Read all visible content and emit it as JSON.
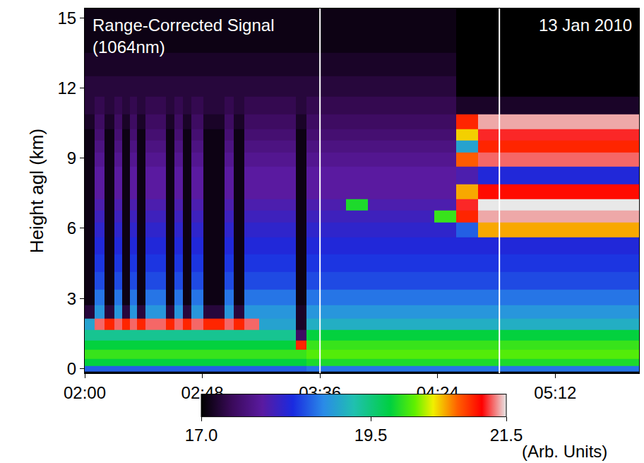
{
  "chart_data": {
    "type": "heatmap",
    "y_label": "Height agl (km)",
    "annotations": [
      {
        "lines": [
          "Range-Corrected Signal",
          "(1064nm)"
        ]
      },
      {
        "lines": [
          "13 Jan 2010"
        ]
      }
    ],
    "xlim": [
      2.0,
      5.77
    ],
    "xticks": [
      {
        "value": 2.0,
        "label": "02:00"
      },
      {
        "value": 2.8,
        "label": "02:48"
      },
      {
        "value": 3.6,
        "label": "03:36"
      },
      {
        "value": 4.4,
        "label": "04:24"
      },
      {
        "value": 5.2,
        "label": "05:12"
      }
    ],
    "ylim": [
      -0.2,
      15.4
    ],
    "yticks": [
      0,
      3,
      6,
      9,
      12,
      15
    ],
    "vertical_lines": [
      3.6,
      4.82
    ],
    "zlim": [
      17,
      21.5
    ],
    "zticks": [
      {
        "value": 17,
        "label": "17.0"
      },
      {
        "value": 19.5,
        "label": "19.5"
      },
      {
        "value": 21.5,
        "label": "21.5"
      }
    ],
    "colorbar_title": "(Arb. Units)",
    "x": [
      2.03,
      2.1,
      2.17,
      2.23,
      2.28,
      2.33,
      2.38,
      2.45,
      2.52,
      2.58,
      2.64,
      2.69,
      2.76,
      2.85,
      2.92,
      2.98,
      3.05,
      3.12,
      3.25,
      3.4,
      3.47,
      3.55,
      3.7,
      3.85,
      4.0,
      4.15,
      4.3,
      4.45,
      4.6,
      4.75,
      4.9,
      5.05,
      5.2,
      5.35,
      5.5,
      5.65,
      5.75
    ],
    "y": [
      0,
      0.25,
      0.6,
      1.0,
      1.4,
      1.9,
      2.4,
      3.0,
      3.75,
      4.5,
      5.25,
      6.0,
      6.5,
      7.0,
      7.5,
      8.25,
      9.0,
      9.5,
      10.0,
      10.5,
      11.25,
      12.0,
      13.0,
      14.0,
      15.0
    ],
    "z": [
      [
        18.6,
        18.6,
        18.6,
        18.6,
        18.6,
        18.6,
        18.6,
        18.6,
        18.6,
        18.6,
        18.6,
        18.6,
        18.6,
        18.6,
        18.6,
        18.6,
        18.6,
        18.6,
        18.6,
        18.6,
        18.6,
        18.7,
        18.7,
        18.7,
        18.7,
        18.7,
        18.7,
        18.7,
        18.7,
        18.7,
        18.7,
        18.7,
        18.7,
        18.7,
        18.7,
        18.7,
        18.7
      ],
      [
        19.8,
        19.8,
        19.8,
        19.8,
        19.8,
        19.8,
        19.8,
        19.8,
        19.8,
        19.8,
        19.8,
        19.8,
        19.8,
        19.8,
        19.8,
        19.8,
        19.8,
        19.8,
        19.8,
        19.8,
        19.8,
        19.9,
        19.9,
        19.9,
        19.9,
        19.9,
        19.9,
        19.9,
        19.9,
        19.9,
        19.9,
        19.9,
        19.9,
        19.9,
        19.9,
        19.9,
        19.9
      ],
      [
        20.0,
        20.0,
        20.0,
        20.0,
        20.0,
        20.0,
        20.0,
        20.0,
        20.0,
        20.0,
        20.0,
        20.0,
        20.0,
        20.0,
        20.0,
        20.0,
        20.0,
        20.0,
        20.0,
        20.0,
        20.0,
        20.1,
        20.1,
        20.1,
        20.1,
        20.1,
        20.1,
        20.1,
        20.1,
        20.1,
        20.1,
        20.1,
        20.1,
        20.1,
        20.1,
        20.1,
        20.1
      ],
      [
        19.8,
        19.8,
        19.8,
        19.8,
        19.8,
        19.8,
        19.8,
        19.8,
        19.8,
        19.8,
        19.8,
        19.8,
        19.8,
        19.8,
        19.8,
        19.8,
        19.8,
        19.8,
        19.8,
        19.8,
        21.0,
        20.0,
        20.0,
        20.0,
        20.0,
        20.0,
        20.0,
        20.0,
        20.0,
        20.0,
        20.0,
        20.0,
        20.0,
        20.0,
        20.0,
        20.0,
        20.0
      ],
      [
        19.4,
        19.4,
        19.4,
        19.4,
        19.4,
        19.4,
        19.4,
        19.4,
        19.4,
        19.4,
        19.4,
        19.4,
        19.4,
        19.4,
        19.4,
        19.4,
        19.4,
        19.4,
        19.4,
        19.4,
        17.5,
        19.8,
        19.8,
        19.8,
        19.8,
        19.8,
        19.8,
        19.8,
        19.8,
        19.8,
        19.8,
        19.8,
        19.8,
        19.8,
        19.8,
        19.8,
        19.8
      ],
      [
        19.0,
        21.3,
        21.0,
        21.3,
        21.0,
        21.3,
        21.0,
        21.3,
        21.3,
        21.0,
        21.3,
        21.0,
        21.3,
        21.0,
        21.0,
        21.3,
        21.0,
        21.3,
        19.0,
        19.0,
        17.2,
        19.1,
        19.1,
        19.1,
        19.1,
        19.1,
        19.1,
        19.1,
        19.1,
        19.1,
        19.1,
        19.1,
        19.1,
        19.1,
        19.1,
        19.1,
        19.1
      ],
      [
        17.3,
        18.9,
        17.3,
        18.9,
        17.3,
        18.9,
        17.3,
        18.9,
        18.9,
        17.3,
        18.9,
        17.3,
        18.9,
        17.3,
        17.3,
        18.9,
        17.3,
        18.9,
        18.9,
        18.9,
        17.2,
        18.9,
        18.9,
        18.9,
        18.9,
        18.9,
        18.9,
        18.9,
        18.9,
        18.9,
        18.9,
        18.9,
        18.9,
        18.9,
        18.9,
        18.9,
        18.9
      ],
      [
        17.1,
        18.7,
        17.1,
        18.7,
        17.1,
        18.7,
        17.1,
        18.7,
        18.7,
        17.1,
        18.7,
        17.1,
        18.7,
        17.1,
        17.1,
        18.7,
        17.1,
        18.7,
        18.7,
        18.7,
        17.1,
        18.7,
        18.7,
        18.7,
        18.7,
        18.7,
        18.7,
        18.7,
        18.7,
        18.7,
        18.7,
        18.7,
        18.7,
        18.7,
        18.7,
        18.7,
        18.7
      ],
      [
        17.1,
        18.5,
        17.1,
        18.5,
        17.1,
        18.5,
        17.1,
        18.5,
        18.5,
        17.1,
        18.5,
        17.1,
        18.5,
        17.1,
        17.1,
        18.5,
        17.1,
        18.5,
        18.5,
        18.5,
        17.1,
        18.5,
        18.5,
        18.5,
        18.5,
        18.5,
        18.5,
        18.5,
        18.5,
        18.5,
        18.5,
        18.5,
        18.5,
        18.5,
        18.5,
        18.5,
        18.5
      ],
      [
        17.1,
        18.4,
        17.1,
        18.4,
        17.1,
        18.4,
        17.1,
        18.4,
        18.4,
        17.1,
        18.4,
        17.1,
        18.4,
        17.1,
        17.1,
        18.4,
        17.1,
        18.4,
        18.4,
        18.4,
        17.1,
        18.4,
        18.4,
        18.4,
        18.4,
        18.4,
        18.4,
        18.4,
        18.4,
        18.4,
        18.4,
        18.4,
        18.4,
        18.4,
        18.4,
        18.4,
        18.4
      ],
      [
        17.1,
        18.3,
        17.1,
        18.3,
        17.1,
        18.3,
        17.1,
        18.3,
        18.3,
        17.1,
        18.3,
        17.1,
        18.3,
        17.1,
        17.1,
        18.3,
        17.1,
        18.3,
        18.3,
        18.3,
        17.1,
        18.3,
        18.3,
        18.3,
        18.3,
        18.3,
        18.3,
        18.3,
        18.3,
        18.3,
        18.3,
        18.3,
        18.3,
        18.3,
        18.3,
        18.3,
        18.3
      ],
      [
        17.1,
        18.2,
        17.1,
        18.2,
        17.1,
        18.2,
        17.1,
        18.2,
        18.2,
        17.1,
        18.2,
        17.1,
        18.2,
        17.1,
        17.1,
        18.2,
        17.1,
        18.2,
        18.2,
        18.2,
        17.1,
        18.2,
        18.2,
        18.2,
        18.2,
        18.2,
        18.2,
        18.2,
        18.6,
        20.6,
        20.6,
        20.6,
        20.6,
        20.6,
        20.6,
        20.6,
        20.6
      ],
      [
        17.1,
        18.1,
        17.1,
        18.1,
        17.1,
        18.1,
        17.1,
        18.1,
        18.1,
        17.1,
        18.1,
        17.1,
        18.1,
        17.1,
        17.1,
        18.1,
        17.1,
        18.1,
        18.1,
        18.1,
        17.1,
        18.1,
        18.1,
        18.1,
        18.1,
        18.1,
        18.1,
        20.0,
        21.0,
        21.4,
        21.4,
        21.4,
        21.4,
        21.4,
        21.4,
        21.4,
        21.4
      ],
      [
        17.1,
        18.0,
        17.1,
        18.0,
        17.1,
        18.0,
        17.1,
        18.0,
        18.0,
        17.1,
        18.0,
        17.1,
        18.0,
        17.1,
        17.1,
        18.0,
        17.1,
        18.0,
        18.0,
        18.0,
        17.1,
        18.0,
        18.0,
        19.9,
        18.0,
        18.0,
        18.0,
        18.0,
        21.2,
        21.5,
        21.5,
        21.5,
        21.5,
        21.5,
        21.5,
        21.5,
        21.5
      ],
      [
        17.1,
        17.9,
        17.1,
        17.9,
        17.1,
        17.9,
        17.1,
        17.9,
        17.9,
        17.1,
        17.9,
        17.1,
        17.9,
        17.1,
        17.1,
        17.9,
        17.1,
        17.9,
        17.9,
        17.9,
        17.1,
        17.9,
        17.9,
        17.9,
        17.9,
        17.9,
        17.9,
        17.9,
        20.6,
        21.1,
        21.1,
        21.1,
        21.1,
        21.1,
        21.1,
        21.1,
        21.1
      ],
      [
        17.1,
        17.9,
        17.1,
        17.9,
        17.1,
        17.9,
        17.1,
        17.9,
        17.9,
        17.1,
        17.9,
        17.1,
        17.9,
        17.1,
        17.1,
        17.9,
        17.1,
        17.9,
        17.9,
        17.9,
        17.1,
        17.9,
        17.9,
        17.9,
        17.9,
        17.9,
        17.9,
        17.9,
        18.0,
        18.3,
        18.3,
        18.3,
        18.3,
        18.3,
        18.3,
        18.3,
        18.3
      ],
      [
        17.1,
        17.8,
        17.1,
        17.8,
        17.1,
        17.8,
        17.1,
        17.8,
        17.8,
        17.1,
        17.8,
        17.1,
        17.8,
        17.1,
        17.1,
        17.8,
        17.1,
        17.8,
        17.8,
        17.8,
        17.1,
        17.8,
        17.8,
        17.8,
        17.8,
        17.8,
        17.8,
        17.8,
        20.8,
        21.3,
        21.3,
        21.3,
        21.3,
        21.3,
        21.3,
        21.3,
        21.3
      ],
      [
        17.1,
        17.7,
        17.1,
        17.7,
        17.1,
        17.7,
        17.1,
        17.7,
        17.7,
        17.1,
        17.7,
        17.1,
        17.7,
        17.1,
        17.1,
        17.7,
        17.1,
        17.7,
        17.7,
        17.7,
        17.1,
        17.7,
        17.7,
        17.7,
        17.7,
        17.7,
        17.7,
        17.7,
        19.0,
        21.0,
        21.0,
        21.0,
        21.0,
        21.0,
        21.0,
        21.0,
        21.0
      ],
      [
        17.1,
        17.6,
        17.1,
        17.6,
        17.1,
        17.6,
        17.1,
        17.6,
        17.6,
        17.1,
        17.6,
        17.1,
        17.6,
        17.1,
        17.1,
        17.6,
        17.1,
        17.6,
        17.6,
        17.6,
        17.1,
        17.6,
        17.6,
        17.6,
        17.6,
        17.6,
        17.6,
        17.6,
        20.5,
        21.2,
        21.2,
        21.2,
        21.2,
        21.2,
        21.2,
        21.2,
        21.2
      ],
      [
        17.2,
        17.5,
        17.2,
        17.5,
        17.2,
        17.5,
        17.2,
        17.5,
        17.5,
        17.2,
        17.5,
        17.2,
        17.5,
        17.2,
        17.2,
        17.5,
        17.2,
        17.5,
        17.5,
        17.5,
        17.2,
        17.5,
        17.5,
        17.5,
        17.5,
        17.5,
        17.5,
        17.5,
        21.0,
        21.4,
        21.4,
        21.4,
        21.4,
        21.4,
        21.4,
        21.4,
        21.4
      ],
      [
        17.3,
        17.4,
        17.3,
        17.4,
        17.3,
        17.4,
        17.3,
        17.4,
        17.4,
        17.3,
        17.4,
        17.3,
        17.4,
        17.3,
        17.3,
        17.4,
        17.3,
        17.4,
        17.4,
        17.4,
        17.3,
        17.4,
        17.4,
        17.4,
        17.4,
        17.4,
        17.4,
        17.4,
        17.2,
        17.2,
        17.2,
        17.2,
        17.2,
        17.2,
        17.2,
        17.2,
        17.2
      ],
      [
        17.3,
        17.3,
        17.3,
        17.3,
        17.3,
        17.3,
        17.3,
        17.3,
        17.3,
        17.3,
        17.3,
        17.3,
        17.3,
        17.3,
        17.3,
        17.3,
        17.3,
        17.3,
        17.3,
        17.3,
        17.3,
        17.3,
        17.3,
        17.3,
        17.3,
        17.3,
        17.3,
        17.3,
        17.0,
        17.0,
        17.0,
        17.0,
        17.0,
        17.0,
        17.0,
        17.0,
        17.0
      ],
      [
        17.2,
        17.2,
        17.2,
        17.2,
        17.2,
        17.2,
        17.2,
        17.2,
        17.2,
        17.2,
        17.2,
        17.2,
        17.2,
        17.2,
        17.2,
        17.2,
        17.2,
        17.2,
        17.2,
        17.2,
        17.2,
        17.2,
        17.2,
        17.2,
        17.2,
        17.2,
        17.2,
        17.2,
        17.0,
        17.0,
        17.0,
        17.0,
        17.0,
        17.0,
        17.0,
        17.0,
        17.0
      ],
      [
        17.1,
        17.1,
        17.1,
        17.1,
        17.1,
        17.1,
        17.1,
        17.1,
        17.1,
        17.1,
        17.1,
        17.1,
        17.1,
        17.1,
        17.1,
        17.1,
        17.1,
        17.1,
        17.1,
        17.1,
        17.1,
        17.1,
        17.1,
        17.1,
        17.1,
        17.1,
        17.1,
        17.1,
        17.0,
        17.0,
        17.0,
        17.0,
        17.0,
        17.0,
        17.0,
        17.0,
        17.0
      ],
      [
        17.1,
        17.1,
        17.1,
        17.1,
        17.1,
        17.1,
        17.1,
        17.1,
        17.1,
        17.1,
        17.1,
        17.1,
        17.1,
        17.1,
        17.1,
        17.1,
        17.1,
        17.1,
        17.1,
        17.1,
        17.1,
        17.1,
        17.1,
        17.1,
        17.1,
        17.1,
        17.1,
        17.1,
        17.0,
        17.0,
        17.0,
        17.0,
        17.0,
        17.0,
        17.0,
        17.0,
        17.0
      ]
    ]
  }
}
